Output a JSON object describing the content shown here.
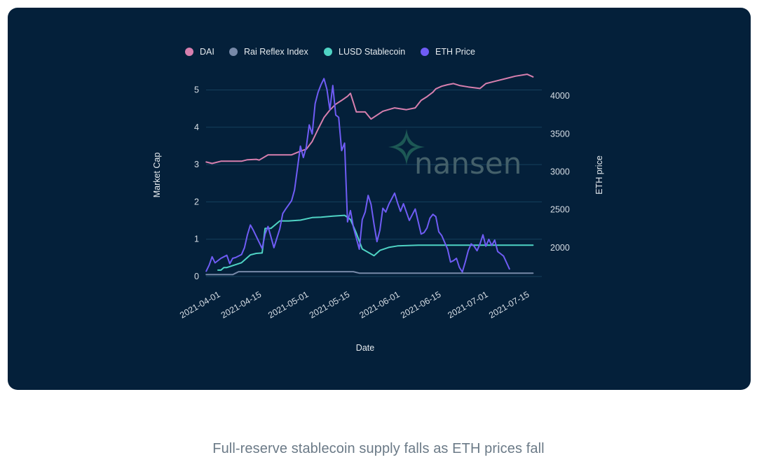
{
  "caption": "Full-reserve stablecoin supply falls as ETH prices fall",
  "watermark": {
    "text": "nansen"
  },
  "chart_data": {
    "type": "line",
    "background": "#04203a",
    "xlabel": "Date",
    "ylabel": "Market Cap",
    "y2label": "ETH price",
    "x_range": [
      "2021-03-28",
      "2021-07-19"
    ],
    "ylim": [
      0,
      5.4
    ],
    "y2lim": [
      1620,
      4270
    ],
    "yticks": [
      0,
      1,
      2,
      3,
      4,
      5
    ],
    "y2ticks": [
      2000,
      2500,
      3000,
      3500,
      4000
    ],
    "xticks": [
      "2021-04-01",
      "2021-04-15",
      "2021-05-01",
      "2021-05-15",
      "2021-06-01",
      "2021-06-15",
      "2021-07-01",
      "2021-07-15"
    ],
    "grid": true,
    "legend_position": "top",
    "series": [
      {
        "name": "DAI",
        "axis": "left",
        "color": "#d77fae",
        "points": [
          [
            "2021-03-28",
            3.07
          ],
          [
            "2021-03-30",
            3.03
          ],
          [
            "2021-04-02",
            3.09
          ],
          [
            "2021-04-06",
            3.09
          ],
          [
            "2021-04-09",
            3.09
          ],
          [
            "2021-04-11",
            3.13
          ],
          [
            "2021-04-14",
            3.14
          ],
          [
            "2021-04-15",
            3.12
          ],
          [
            "2021-04-18",
            3.26
          ],
          [
            "2021-04-22",
            3.26
          ],
          [
            "2021-04-26",
            3.26
          ],
          [
            "2021-04-29",
            3.36
          ],
          [
            "2021-05-01",
            3.41
          ],
          [
            "2021-05-03",
            3.62
          ],
          [
            "2021-05-05",
            3.95
          ],
          [
            "2021-05-07",
            4.26
          ],
          [
            "2021-05-09",
            4.46
          ],
          [
            "2021-05-11",
            4.62
          ],
          [
            "2021-05-13",
            4.72
          ],
          [
            "2021-05-15",
            4.83
          ],
          [
            "2021-05-16",
            4.91
          ],
          [
            "2021-05-18",
            4.41
          ],
          [
            "2021-05-21",
            4.41
          ],
          [
            "2021-05-23",
            4.22
          ],
          [
            "2021-05-27",
            4.43
          ],
          [
            "2021-05-31",
            4.52
          ],
          [
            "2021-06-04",
            4.47
          ],
          [
            "2021-06-07",
            4.52
          ],
          [
            "2021-06-09",
            4.72
          ],
          [
            "2021-06-11",
            4.82
          ],
          [
            "2021-06-13",
            4.94
          ],
          [
            "2021-06-14",
            5.03
          ],
          [
            "2021-06-16",
            5.1
          ],
          [
            "2021-06-18",
            5.14
          ],
          [
            "2021-06-20",
            5.17
          ],
          [
            "2021-06-22",
            5.12
          ],
          [
            "2021-06-25",
            5.08
          ],
          [
            "2021-06-29",
            5.04
          ],
          [
            "2021-07-01",
            5.17
          ],
          [
            "2021-07-04",
            5.23
          ],
          [
            "2021-07-08",
            5.31
          ],
          [
            "2021-07-11",
            5.37
          ],
          [
            "2021-07-15",
            5.42
          ],
          [
            "2021-07-17",
            5.35
          ]
        ]
      },
      {
        "name": "Rai Reflex Index",
        "axis": "left",
        "color": "#7789a8",
        "points": [
          [
            "2021-03-28",
            0.05
          ],
          [
            "2021-04-06",
            0.05
          ],
          [
            "2021-04-08",
            0.13
          ],
          [
            "2021-05-17",
            0.13
          ],
          [
            "2021-05-19",
            0.09
          ],
          [
            "2021-07-17",
            0.09
          ]
        ]
      },
      {
        "name": "LUSD Stablecoin",
        "axis": "left",
        "color": "#4fd3c4",
        "points": [
          [
            "2021-04-01",
            0.17
          ],
          [
            "2021-04-02",
            0.17
          ],
          [
            "2021-04-03",
            0.24
          ],
          [
            "2021-04-04",
            0.24
          ],
          [
            "2021-04-09",
            0.37
          ],
          [
            "2021-04-12",
            0.58
          ],
          [
            "2021-04-14",
            0.62
          ],
          [
            "2021-04-16",
            0.63
          ],
          [
            "2021-04-17",
            1.29
          ],
          [
            "2021-04-19",
            1.29
          ],
          [
            "2021-04-22",
            1.49
          ],
          [
            "2021-04-25",
            1.49
          ],
          [
            "2021-04-29",
            1.51
          ],
          [
            "2021-05-03",
            1.58
          ],
          [
            "2021-05-06",
            1.59
          ],
          [
            "2021-05-10",
            1.62
          ],
          [
            "2021-05-14",
            1.64
          ],
          [
            "2021-05-16",
            1.53
          ],
          [
            "2021-05-18",
            1.16
          ],
          [
            "2021-05-20",
            0.74
          ],
          [
            "2021-05-24",
            0.56
          ],
          [
            "2021-05-26",
            0.7
          ],
          [
            "2021-05-29",
            0.78
          ],
          [
            "2021-06-01",
            0.82
          ],
          [
            "2021-06-08",
            0.84
          ],
          [
            "2021-06-14",
            0.84
          ],
          [
            "2021-06-16",
            0.84
          ],
          [
            "2021-06-23",
            0.84
          ],
          [
            "2021-06-25",
            0.84
          ],
          [
            "2021-06-27",
            0.84
          ],
          [
            "2021-06-29",
            0.84
          ],
          [
            "2021-07-17",
            0.84
          ]
        ]
      },
      {
        "name": "ETH Price",
        "axis": "right",
        "color": "#6f5cf5",
        "points": [
          [
            "2021-03-28",
            1690
          ],
          [
            "2021-03-29",
            1770
          ],
          [
            "2021-03-30",
            1880
          ],
          [
            "2021-03-31",
            1800
          ],
          [
            "2021-04-02",
            1860
          ],
          [
            "2021-04-04",
            1900
          ],
          [
            "2021-04-05",
            1790
          ],
          [
            "2021-04-06",
            1860
          ],
          [
            "2021-04-07",
            1870
          ],
          [
            "2021-04-09",
            1910
          ],
          [
            "2021-04-10",
            2000
          ],
          [
            "2021-04-11",
            2170
          ],
          [
            "2021-04-12",
            2300
          ],
          [
            "2021-04-13",
            2230
          ],
          [
            "2021-04-16",
            1990
          ],
          [
            "2021-04-17",
            2180
          ],
          [
            "2021-04-18",
            2280
          ],
          [
            "2021-04-20",
            2000
          ],
          [
            "2021-04-22",
            2250
          ],
          [
            "2021-04-23",
            2450
          ],
          [
            "2021-04-24",
            2510
          ],
          [
            "2021-04-26",
            2620
          ],
          [
            "2021-04-27",
            2760
          ],
          [
            "2021-04-28",
            3050
          ],
          [
            "2021-04-29",
            3340
          ],
          [
            "2021-04-30",
            3190
          ],
          [
            "2021-05-01",
            3330
          ],
          [
            "2021-05-02",
            3620
          ],
          [
            "2021-05-03",
            3500
          ],
          [
            "2021-05-04",
            3900
          ],
          [
            "2021-05-05",
            4050
          ],
          [
            "2021-05-06",
            4150
          ],
          [
            "2021-05-07",
            4230
          ],
          [
            "2021-05-08",
            4090
          ],
          [
            "2021-05-09",
            3820
          ],
          [
            "2021-05-10",
            4140
          ],
          [
            "2021-05-11",
            3750
          ],
          [
            "2021-05-12",
            3720
          ],
          [
            "2021-05-13",
            3280
          ],
          [
            "2021-05-14",
            3380
          ],
          [
            "2021-05-15",
            2340
          ],
          [
            "2021-05-16",
            2490
          ],
          [
            "2021-05-17",
            2270
          ],
          [
            "2021-05-19",
            1980
          ],
          [
            "2021-05-20",
            2370
          ],
          [
            "2021-05-21",
            2470
          ],
          [
            "2021-05-22",
            2690
          ],
          [
            "2021-05-23",
            2570
          ],
          [
            "2021-05-24",
            2310
          ],
          [
            "2021-05-25",
            2080
          ],
          [
            "2021-05-26",
            2230
          ],
          [
            "2021-05-27",
            2520
          ],
          [
            "2021-05-28",
            2470
          ],
          [
            "2021-05-29",
            2570
          ],
          [
            "2021-05-31",
            2720
          ],
          [
            "2021-06-01",
            2590
          ],
          [
            "2021-06-02",
            2480
          ],
          [
            "2021-06-03",
            2580
          ],
          [
            "2021-06-05",
            2360
          ],
          [
            "2021-06-07",
            2510
          ],
          [
            "2021-06-09",
            2180
          ],
          [
            "2021-06-10",
            2200
          ],
          [
            "2021-06-11",
            2260
          ],
          [
            "2021-06-12",
            2390
          ],
          [
            "2021-06-13",
            2440
          ],
          [
            "2021-06-14",
            2410
          ],
          [
            "2021-06-15",
            2210
          ],
          [
            "2021-06-16",
            2160
          ],
          [
            "2021-06-18",
            1980
          ],
          [
            "2021-06-19",
            1810
          ],
          [
            "2021-06-20",
            1830
          ],
          [
            "2021-06-21",
            1860
          ],
          [
            "2021-06-22",
            1740
          ],
          [
            "2021-06-23",
            1680
          ],
          [
            "2021-06-24",
            1810
          ],
          [
            "2021-06-25",
            1960
          ],
          [
            "2021-06-26",
            2050
          ],
          [
            "2021-06-27",
            2020
          ],
          [
            "2021-06-28",
            1960
          ],
          [
            "2021-06-29",
            2050
          ],
          [
            "2021-06-30",
            2170
          ],
          [
            "2021-07-01",
            2020
          ],
          [
            "2021-07-02",
            2110
          ],
          [
            "2021-07-03",
            2030
          ],
          [
            "2021-07-04",
            2100
          ],
          [
            "2021-07-05",
            1950
          ],
          [
            "2021-07-06",
            1920
          ],
          [
            "2021-07-07",
            1890
          ],
          [
            "2021-07-09",
            1720
          ]
        ]
      }
    ]
  }
}
